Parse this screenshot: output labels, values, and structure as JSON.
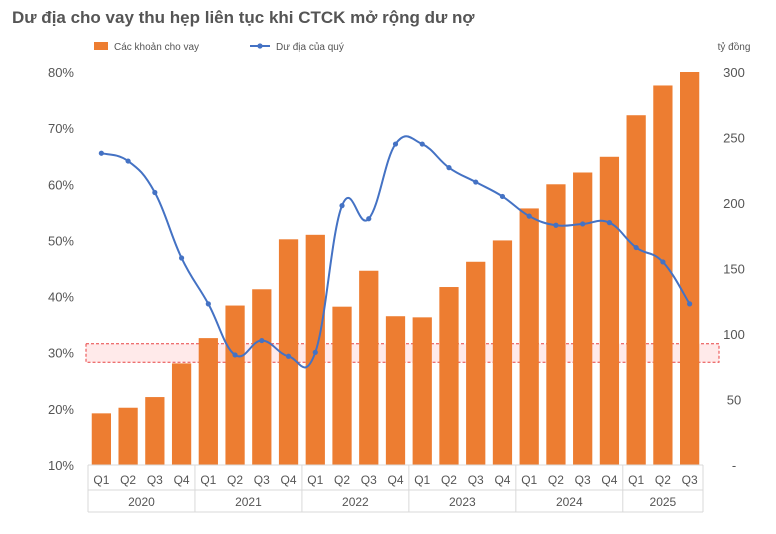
{
  "title": "Dư địa cho vay thu hẹp liên tục khi CTCK mở rộng dư nợ",
  "colors": {
    "bar": "#ED7D31",
    "line": "#4472C4",
    "band_fill": "#FFE3E3",
    "band_stroke": "#E84040"
  },
  "chart_data": {
    "type": "bar",
    "categories": [
      "Q1",
      "Q2",
      "Q3",
      "Q4",
      "Q1",
      "Q2",
      "Q3",
      "Q4",
      "Q1",
      "Q2",
      "Q3",
      "Q4",
      "Q1",
      "Q2",
      "Q3",
      "Q4",
      "Q1",
      "Q2",
      "Q3",
      "Q4",
      "Q1",
      "Q2",
      "Q3"
    ],
    "years": [
      {
        "label": "2020",
        "count": 4
      },
      {
        "label": "2021",
        "count": 4
      },
      {
        "label": "2022",
        "count": 4
      },
      {
        "label": "2023",
        "count": 4
      },
      {
        "label": "2024",
        "count": 4
      },
      {
        "label": "2025",
        "count": 3
      }
    ],
    "series": [
      {
        "name": "Các khoản cho vay",
        "type": "bar",
        "axis": "left",
        "values": [
          19.2,
          20.2,
          22.1,
          28.1,
          32.6,
          38.4,
          41.3,
          50.2,
          51.0,
          38.2,
          44.6,
          36.5,
          36.3,
          41.7,
          46.2,
          50.0,
          55.7,
          60.0,
          62.1,
          64.9,
          72.3,
          77.6,
          80.0
        ]
      },
      {
        "name": "Dư địa của quý",
        "type": "line",
        "axis": "right",
        "values": [
          238,
          232,
          208,
          158,
          123,
          84,
          95,
          83,
          86,
          198,
          188,
          245,
          245,
          227,
          216,
          205,
          190,
          183,
          184,
          185,
          166,
          155,
          123
        ]
      }
    ],
    "left_axis": {
      "ylim": [
        10,
        80
      ],
      "ticks": [
        "10%",
        "20%",
        "30%",
        "40%",
        "50%",
        "60%",
        "70%",
        "80%"
      ]
    },
    "right_axis": {
      "ylim": [
        0,
        300
      ],
      "ticks": [
        "-",
        "50",
        "100",
        "150",
        "200",
        "250",
        "300"
      ],
      "unit": "tỷ đồng"
    },
    "highlight_band": {
      "axis": "left",
      "from": 28.3,
      "to": 31.6
    },
    "legend_position": "top-left",
    "grid": false
  }
}
